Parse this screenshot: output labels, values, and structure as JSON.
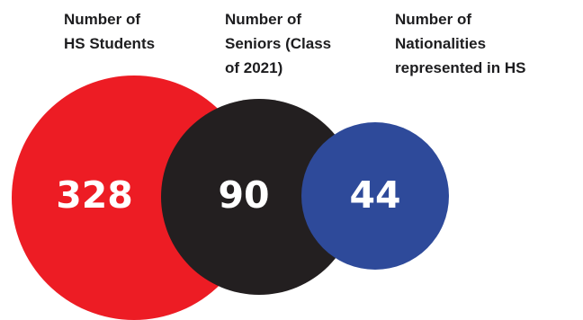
{
  "stats": [
    {
      "label": "Number of\nHS Students",
      "value": "328",
      "color": "#ed1c24"
    },
    {
      "label": "Number of\nSeniors (Class\nof 2021)",
      "value": "90",
      "color": "#231f20"
    },
    {
      "label": "Number of\nNationalities\nrepresented in HS",
      "value": "44",
      "color": "#2e4a9a"
    }
  ]
}
